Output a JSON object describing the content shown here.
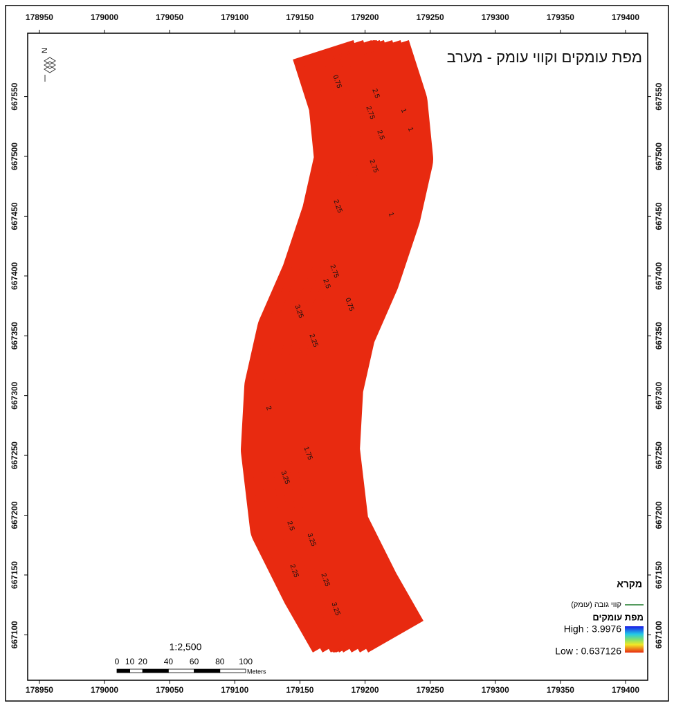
{
  "map": {
    "title": "מפת עומקים וקווי עומק - מערב",
    "north": "N",
    "xlim": [
      178941,
      179417
    ],
    "ylim": [
      667062,
      667603
    ],
    "xticks": [
      178950,
      179000,
      179050,
      179100,
      179150,
      179200,
      179250,
      179300,
      179350,
      179400
    ],
    "yticks": [
      667100,
      667150,
      667200,
      667250,
      667300,
      667350,
      667400,
      667450,
      667500,
      667550
    ],
    "legend": {
      "title": "מקרא",
      "contour": "קווי גובה (עומק)",
      "raster_title": "מפת עומקים",
      "high": "High : 3.9976",
      "low": "Low : 0.637126"
    },
    "scale": {
      "ratio": "1:2,500",
      "ticks": [
        0,
        10,
        20,
        40,
        60,
        80,
        100
      ],
      "unit": "Meters"
    },
    "contour_labels": [
      "0.75",
      "2.5",
      "2.75",
      "2.5",
      "2.75",
      "2.25",
      "1",
      "2.5",
      "2.75",
      "0.75",
      "3.25",
      "2.25",
      "2",
      "1.75",
      "3.25",
      "2.5",
      "3.25",
      "2.25",
      "2.25",
      "3.25",
      "1",
      "1"
    ]
  }
}
